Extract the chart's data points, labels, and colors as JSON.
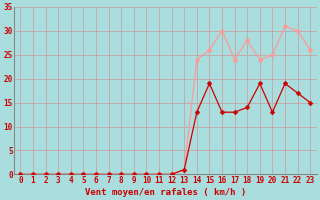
{
  "x": [
    0,
    1,
    2,
    3,
    4,
    5,
    6,
    7,
    8,
    9,
    10,
    11,
    12,
    13,
    14,
    15,
    16,
    17,
    18,
    19,
    20,
    21,
    22,
    23
  ],
  "y_mean": [
    0,
    0,
    0,
    0,
    0,
    0,
    0,
    0,
    0,
    0,
    0,
    0,
    0,
    1,
    13,
    19,
    13,
    13,
    14,
    19,
    13,
    19,
    17,
    15
  ],
  "y_gust": [
    0,
    0,
    0,
    0,
    0,
    0,
    0,
    0,
    0,
    0,
    0,
    0,
    0,
    1,
    24,
    26,
    30,
    24,
    28,
    24,
    25,
    31,
    30,
    26
  ],
  "mean_color": "#cc0000",
  "gust_color": "#ff9999",
  "bg_color": "#aadddd",
  "grid_color": "#cc9999",
  "xlabel": "Vent moyen/en rafales ( km/h )",
  "ylim": [
    0,
    35
  ],
  "xlim": [
    -0.5,
    23.5
  ],
  "yticks": [
    0,
    5,
    10,
    15,
    20,
    25,
    30,
    35
  ],
  "xticks": [
    0,
    1,
    2,
    3,
    4,
    5,
    6,
    7,
    8,
    9,
    10,
    11,
    12,
    13,
    14,
    15,
    16,
    17,
    18,
    19,
    20,
    21,
    22,
    23
  ],
  "xlabel_color": "#cc0000",
  "tick_color": "#cc0000",
  "axis_label_fontsize": 6.5,
  "tick_fontsize": 5.5,
  "markersize": 2.5,
  "linewidth": 0.9,
  "spine_color": "#888888"
}
